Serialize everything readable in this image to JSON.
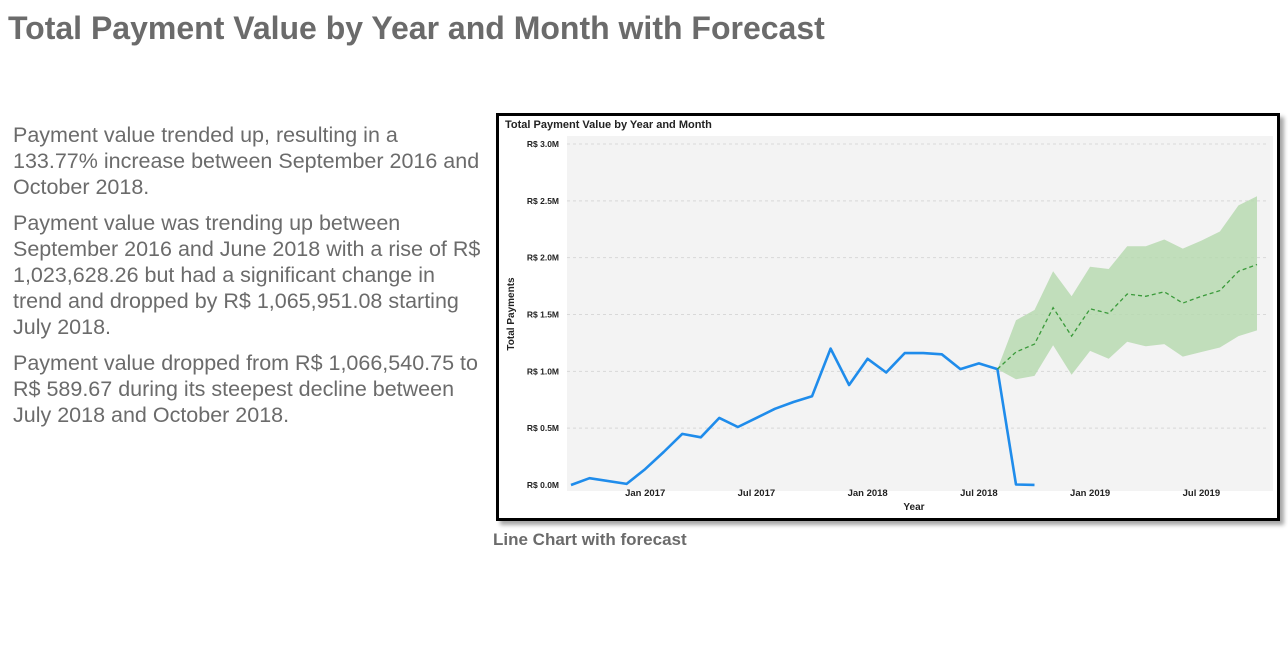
{
  "page": {
    "title": "Total Payment Value by Year and Month with Forecast",
    "insights": [
      "Payment value trended up, resulting in a 133.77% increase between September 2016 and October 2018.",
      "Payment value was trending up between September 2016 and June 2018 with a rise of R$ 1,023,628.26 but had a significant change in trend and dropped by R$ 1,065,951.08 starting July 2018.",
      "Payment value dropped from R$ 1,066,540.75 to R$ 589.67 during its steepest decline between July 2018 and October 2018."
    ],
    "caption": "Line Chart with forecast"
  },
  "chart_data": {
    "type": "line",
    "title": "Total Payment Value by Year and Month",
    "xlabel": "Year",
    "ylabel": "Total Payments",
    "ylim": [
      0,
      3000000
    ],
    "y_ticks": [
      {
        "value": 0,
        "label": "R$ 0.0M"
      },
      {
        "value": 500000,
        "label": "R$ 0.5M"
      },
      {
        "value": 1000000,
        "label": "R$ 1.0M"
      },
      {
        "value": 1500000,
        "label": "R$ 1.5M"
      },
      {
        "value": 2000000,
        "label": "R$ 2.0M"
      },
      {
        "value": 2500000,
        "label": "R$ 2.5M"
      },
      {
        "value": 3000000,
        "label": "R$ 3.0M"
      }
    ],
    "x_ticks": [
      {
        "value": "2017-01",
        "label": "Jan 2017"
      },
      {
        "value": "2017-07",
        "label": "Jul 2017"
      },
      {
        "value": "2018-01",
        "label": "Jan 2018"
      },
      {
        "value": "2018-07",
        "label": "Jul 2018"
      },
      {
        "value": "2019-01",
        "label": "Jan 2019"
      },
      {
        "value": "2019-07",
        "label": "Jul 2019"
      }
    ],
    "xlim": [
      "2016-09",
      "2019-10"
    ],
    "grid": true,
    "colors": {
      "actual": "#1f8ceb",
      "forecast": "#3a9a3a",
      "band": "#b7d9b0",
      "plot_bg": "#f3f3f3"
    },
    "series": [
      {
        "kind": "actual",
        "points": [
          {
            "x": "2016-09",
            "y": 0
          },
          {
            "x": "2016-10",
            "y": 60000
          },
          {
            "x": "2016-12",
            "y": 10000
          },
          {
            "x": "2017-01",
            "y": 140000
          },
          {
            "x": "2017-02",
            "y": 290000
          },
          {
            "x": "2017-03",
            "y": 450000
          },
          {
            "x": "2017-04",
            "y": 420000
          },
          {
            "x": "2017-05",
            "y": 590000
          },
          {
            "x": "2017-06",
            "y": 510000
          },
          {
            "x": "2017-07",
            "y": 590000
          },
          {
            "x": "2017-08",
            "y": 670000
          },
          {
            "x": "2017-09",
            "y": 730000
          },
          {
            "x": "2017-10",
            "y": 780000
          },
          {
            "x": "2017-11",
            "y": 1200000
          },
          {
            "x": "2017-12",
            "y": 880000
          },
          {
            "x": "2018-01",
            "y": 1110000
          },
          {
            "x": "2018-02",
            "y": 990000
          },
          {
            "x": "2018-03",
            "y": 1160000
          },
          {
            "x": "2018-04",
            "y": 1160000
          },
          {
            "x": "2018-05",
            "y": 1150000
          },
          {
            "x": "2018-06",
            "y": 1020000
          },
          {
            "x": "2018-07",
            "y": 1070000
          },
          {
            "x": "2018-08",
            "y": 1020000
          },
          {
            "x": "2018-09",
            "y": 4000
          },
          {
            "x": "2018-10",
            "y": 600
          }
        ]
      },
      {
        "kind": "forecast",
        "points": [
          {
            "x": "2018-08",
            "y": 1020000,
            "low": 1020000,
            "high": 1020000
          },
          {
            "x": "2018-09",
            "y": 1170000,
            "low": 930000,
            "high": 1450000
          },
          {
            "x": "2018-10",
            "y": 1240000,
            "low": 960000,
            "high": 1540000
          },
          {
            "x": "2018-11",
            "y": 1560000,
            "low": 1230000,
            "high": 1880000
          },
          {
            "x": "2018-12",
            "y": 1310000,
            "low": 970000,
            "high": 1660000
          },
          {
            "x": "2019-01",
            "y": 1550000,
            "low": 1180000,
            "high": 1920000
          },
          {
            "x": "2019-02",
            "y": 1510000,
            "low": 1110000,
            "high": 1900000
          },
          {
            "x": "2019-03",
            "y": 1680000,
            "low": 1260000,
            "high": 2100000
          },
          {
            "x": "2019-04",
            "y": 1660000,
            "low": 1220000,
            "high": 2100000
          },
          {
            "x": "2019-05",
            "y": 1700000,
            "low": 1240000,
            "high": 2160000
          },
          {
            "x": "2019-06",
            "y": 1600000,
            "low": 1130000,
            "high": 2080000
          },
          {
            "x": "2019-07",
            "y": 1660000,
            "low": 1170000,
            "high": 2150000
          },
          {
            "x": "2019-08",
            "y": 1710000,
            "low": 1210000,
            "high": 2230000
          },
          {
            "x": "2019-09",
            "y": 1880000,
            "low": 1310000,
            "high": 2460000
          },
          {
            "x": "2019-10",
            "y": 1940000,
            "low": 1360000,
            "high": 2540000
          }
        ]
      }
    ]
  }
}
